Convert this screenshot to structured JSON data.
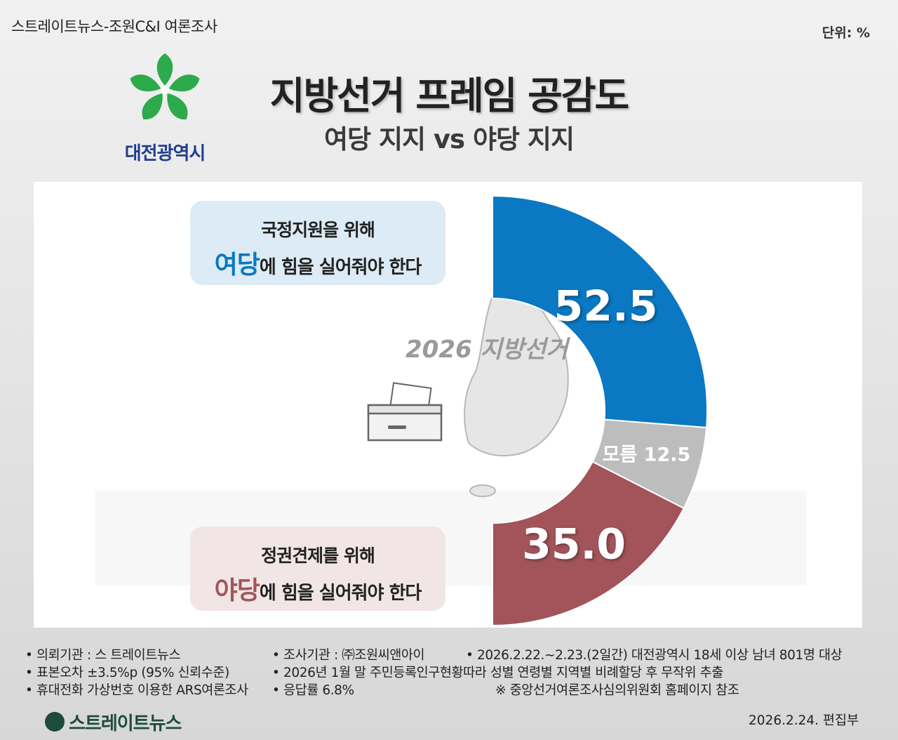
{
  "header": {
    "source_title": "스트레이트뉴스-조원C&I 여론조사",
    "unit": "단위: %",
    "logo_text": "대전광역시",
    "main_title": "지방선거 프레임 공감도",
    "sub_title": "여당 지지 vs 야당 지지"
  },
  "illustration": {
    "caption": "2026 지방선거"
  },
  "bubbles": {
    "ruling": {
      "line1": "국정지원을 위해",
      "em": "여당",
      "line2_rest": "에 힘을 실어줘야 한다"
    },
    "opposition": {
      "line1": "정권견제를 위해",
      "em": "야당",
      "line2_rest": "에 힘을 실어줘야 한다"
    }
  },
  "chart_data": {
    "type": "pie",
    "categories": [
      "여당",
      "모름",
      "야당"
    ],
    "values": [
      52.5,
      12.5,
      35.0
    ],
    "labels": [
      "52.5",
      "모름 12.5",
      "35.0"
    ],
    "colors": [
      "#0a78c3",
      "#bdbdbd",
      "#a2545a"
    ]
  },
  "footer": {
    "items": [
      "• 의뢰기관 : 스 트레이트뉴스",
      "• 조사기관 : ㈜조원씨앤아이",
      "• 2026.2.22.~2.23.(2일간) 대전광역시 18세 이상 남녀 801명 대상",
      "• 표본오차 ±3.5%p (95% 신뢰수준)",
      "• 2026년 1월 말 주민등록인구현황따라 성별 연령별 지역별 비례할당 후 무작위 추출",
      "• 휴대전화 가상번호 이용한 ARS여론조사",
      "• 응답률 6.8%",
      "※ 중앙선거여론조사심의위원회 홈페이지 참조"
    ],
    "brand": "스트레이트뉴스",
    "date": "2026.2.24.  편집부"
  }
}
